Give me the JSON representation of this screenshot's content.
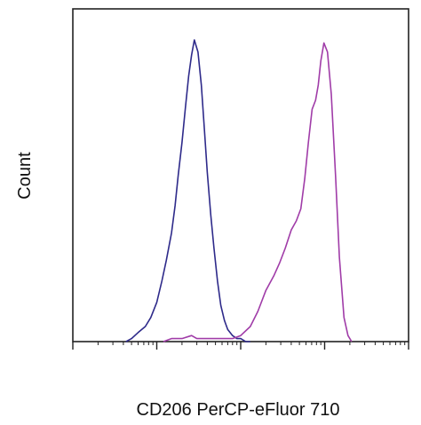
{
  "chart_data": {
    "type": "line",
    "title": "",
    "xlabel": "CD206 PerCP-eFluor 710",
    "ylabel": "Count",
    "x_scale": "log",
    "xlim": [
      10,
      100000
    ],
    "ylim": [
      0,
      100
    ],
    "grid": false,
    "legend": "none",
    "x_tick_labels": [],
    "y_tick_labels": [],
    "series": [
      {
        "color": "#2e2a8a",
        "x": [
          43,
          50,
          60,
          73,
          85,
          100,
          115,
          130,
          150,
          165,
          180,
          200,
          220,
          240,
          260,
          280,
          310,
          340,
          370,
          400,
          440,
          480,
          530,
          580,
          640,
          700,
          800,
          900,
          1000,
          1150,
          1300
        ],
        "values": [
          0,
          1,
          3,
          5,
          8,
          13,
          20,
          27,
          36,
          45,
          55,
          66,
          78,
          88,
          95,
          100,
          96,
          85,
          70,
          56,
          42,
          31,
          20,
          12,
          7,
          4,
          2,
          1,
          1,
          0,
          0
        ]
      },
      {
        "color": "#a03ca8",
        "x": [
          120,
          150,
          200,
          260,
          300,
          400,
          500,
          600,
          800,
          1000,
          1300,
          1600,
          2000,
          2500,
          2900,
          3400,
          4000,
          4600,
          5200,
          5800,
          6400,
          7100,
          7800,
          8400,
          9000,
          9800,
          10800,
          12000,
          13500,
          15000,
          17000,
          19000,
          21000
        ],
        "values": [
          0,
          1,
          1,
          2,
          1,
          1,
          1,
          1,
          1,
          2,
          5,
          10,
          17,
          22,
          26,
          31,
          37,
          40,
          44,
          54,
          66,
          77,
          80,
          85,
          93,
          99,
          96,
          82,
          55,
          28,
          8,
          2,
          0
        ]
      }
    ]
  }
}
